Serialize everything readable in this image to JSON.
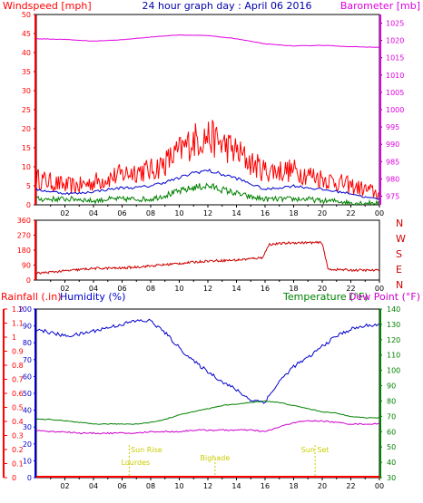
{
  "colors": {
    "wind": "#ff0000",
    "wind_avg": "#0000cc",
    "wind_low": "#008000",
    "baro": "#e000e0",
    "direction": "#cc0000",
    "rain": "#ff0000",
    "humidity": "#0000cc",
    "temperature": "#008000",
    "dewpoint": "#cc00cc",
    "sun": "#cccc00",
    "frame": "#000000"
  },
  "chart_data": [
    {
      "type": "line",
      "title": "24 hour graph day : April 06 2016",
      "left_axis_label": "Windspeed [mph]",
      "right_axis_label": "Barometer [mb]",
      "x_ticks": [
        "02",
        "04",
        "06",
        "08",
        "10",
        "12",
        "14",
        "16",
        "18",
        "20",
        "22",
        "00"
      ],
      "y_left_ticks": [
        "0",
        "5",
        "10",
        "15",
        "20",
        "25",
        "30",
        "35",
        "40",
        "45",
        "50"
      ],
      "y_left_range": [
        0,
        50
      ],
      "y_right_ticks": [
        "975",
        "980",
        "985",
        "990",
        "995",
        "1000",
        "1005",
        "1010",
        "1015",
        "1020",
        "1025"
      ],
      "y_right_range": [
        972.5,
        1027.5
      ],
      "x_range_hours": [
        0,
        24
      ],
      "series": [
        {
          "key": "wind_gust",
          "x": [
            0,
            1,
            2,
            3,
            4,
            5,
            6,
            7,
            8,
            9,
            10,
            11,
            12,
            13,
            14,
            15,
            16,
            17,
            18,
            19,
            20,
            21,
            22,
            23,
            24
          ],
          "values": [
            7,
            6,
            5,
            5,
            6,
            7,
            8,
            9,
            9,
            11,
            14,
            17,
            18,
            16,
            14,
            11,
            9,
            9,
            9,
            8,
            7,
            6,
            5,
            4,
            3
          ]
        },
        {
          "key": "wind_avg",
          "x": [
            0,
            1,
            2,
            3,
            4,
            5,
            6,
            7,
            8,
            9,
            10,
            11,
            12,
            13,
            14,
            15,
            16,
            17,
            18,
            19,
            20,
            21,
            22,
            23,
            24
          ],
          "values": [
            4,
            3.5,
            3,
            3,
            3.5,
            4,
            4.5,
            4.5,
            5,
            6,
            7,
            8.5,
            9,
            8,
            7,
            5.5,
            4,
            4.5,
            5,
            4.5,
            4,
            3.5,
            3,
            2,
            1.5
          ]
        },
        {
          "key": "wind_low",
          "x": [
            0,
            1,
            2,
            3,
            4,
            5,
            6,
            7,
            8,
            9,
            10,
            11,
            12,
            13,
            14,
            15,
            16,
            17,
            18,
            19,
            20,
            21,
            22,
            23,
            24
          ],
          "values": [
            1.5,
            1.5,
            1.5,
            1.5,
            1,
            1.5,
            1.5,
            1.5,
            1.5,
            2.5,
            3.5,
            4.5,
            5,
            4,
            3,
            2,
            1.5,
            1.5,
            1.5,
            1.5,
            1,
            1,
            0.5,
            0.5,
            0.5
          ]
        },
        {
          "key": "barometer",
          "x": [
            0,
            2,
            4,
            6,
            8,
            10,
            12,
            14,
            16,
            18,
            20,
            22,
            24
          ],
          "values": [
            1020.5,
            1020.3,
            1019.8,
            1020.2,
            1021.0,
            1021.6,
            1021.4,
            1020.5,
            1019.0,
            1018.4,
            1018.6,
            1018.2,
            1018.0
          ]
        }
      ]
    },
    {
      "type": "line",
      "y_left_ticks": [
        "0",
        "90",
        "180",
        "270",
        "360"
      ],
      "y_left_range": [
        0,
        360
      ],
      "y_right_ticks": [
        "N",
        "W",
        "S",
        "E",
        "N"
      ],
      "x_ticks": [
        "02",
        "04",
        "06",
        "08",
        "10",
        "12",
        "14",
        "16",
        "18",
        "20",
        "22",
        "00"
      ],
      "x_range_hours": [
        0,
        24
      ],
      "series": [
        {
          "key": "wind_direction",
          "x": [
            0,
            2,
            4,
            6,
            8,
            10,
            12,
            14,
            15.8,
            16.3,
            18,
            20,
            20.4,
            22,
            24
          ],
          "values": [
            40,
            55,
            70,
            72,
            85,
            100,
            115,
            120,
            135,
            215,
            225,
            225,
            65,
            60,
            58
          ]
        }
      ]
    },
    {
      "type": "line",
      "rain_label": "Rainfall (.in)",
      "humidity_label": "Humidity (%)",
      "temperature_label": "Temperature (°F)",
      "dewpoint_label": "Dew Point (°F)",
      "rain_ticks": [
        "0",
        "0.1",
        "0.2",
        "0.3",
        "0.4",
        "0.5",
        "0.6",
        "0.7",
        "0.8",
        "0.9",
        "1",
        "1.1",
        "1.2"
      ],
      "rain_range": [
        0,
        1.2
      ],
      "humidity_ticks": [
        "0",
        "10",
        "20",
        "30",
        "40",
        "50",
        "60",
        "70",
        "80",
        "90",
        "100"
      ],
      "humidity_range": [
        0,
        100
      ],
      "temp_ticks": [
        "30",
        "40",
        "50",
        "60",
        "70",
        "80",
        "90",
        "100",
        "110",
        "120",
        "130",
        "140"
      ],
      "temp_range": [
        30,
        140
      ],
      "x_ticks": [
        "02",
        "04",
        "06",
        "08",
        "10",
        "12",
        "14",
        "16",
        "18",
        "20",
        "22",
        "00"
      ],
      "x_range_hours": [
        0,
        24
      ],
      "sun_rise_label": "Sun Rise",
      "sun_rise_place": "Lourdes",
      "sun_set_label": "Sun Set",
      "sun_set_place": "Bighade",
      "sunrise_hour": 6.5,
      "sunset_hour": 19.5,
      "bighade_hour": 12.5,
      "series": [
        {
          "key": "humidity",
          "x": [
            0,
            1,
            2,
            3,
            4,
            5,
            6,
            7,
            8,
            9,
            10,
            11,
            12,
            13,
            14,
            15,
            16,
            17,
            18,
            19,
            20,
            21,
            22,
            23,
            24
          ],
          "values": [
            88,
            86,
            84,
            85,
            87,
            89,
            91,
            93,
            93,
            86,
            77,
            69,
            63,
            57,
            52,
            46,
            45,
            57,
            66,
            71,
            78,
            84,
            88,
            90,
            91
          ]
        },
        {
          "key": "temperature",
          "x": [
            0,
            1,
            2,
            3,
            4,
            5,
            6,
            7,
            8,
            9,
            10,
            11,
            12,
            13,
            14,
            15,
            16,
            17,
            18,
            19,
            20,
            21,
            22,
            23,
            24
          ],
          "values": [
            68,
            68,
            67,
            66,
            65,
            65,
            65,
            65,
            66,
            68,
            71,
            73,
            75,
            77,
            78,
            79,
            80,
            79,
            77,
            75,
            73,
            72,
            70,
            69,
            69
          ]
        },
        {
          "key": "dewpoint",
          "x": [
            0,
            1,
            2,
            3,
            4,
            5,
            6,
            7,
            8,
            9,
            10,
            11,
            12,
            13,
            14,
            15,
            16,
            17,
            18,
            19,
            20,
            21,
            22,
            23,
            24
          ],
          "values": [
            61,
            60,
            60,
            59,
            59,
            59,
            59,
            59,
            60,
            60,
            60,
            61,
            61,
            61,
            61,
            61,
            60,
            63,
            66,
            67,
            67,
            66,
            65,
            65,
            65
          ]
        },
        {
          "key": "rainfall",
          "x": [
            0,
            24
          ],
          "values": [
            0,
            0
          ]
        }
      ]
    }
  ]
}
